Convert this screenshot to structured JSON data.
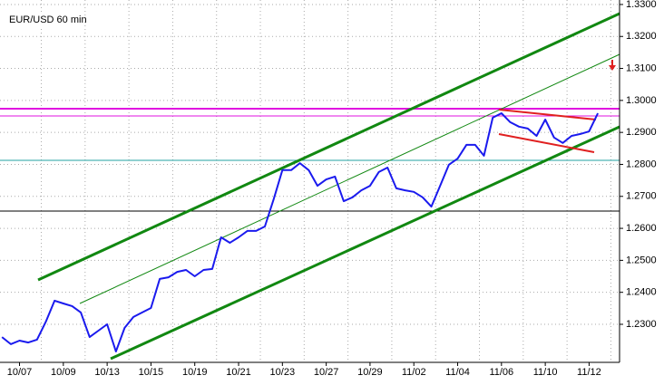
{
  "chart_data": {
    "type": "line",
    "title": "EUR/USD 60 min",
    "categories": [
      null,
      null,
      "10/07",
      null,
      null,
      null,
      null,
      "10/09",
      null,
      null,
      null,
      null,
      "10/13",
      null,
      null,
      null,
      null,
      "10/15",
      null,
      null,
      null,
      null,
      "10/19",
      null,
      null,
      null,
      null,
      "10/21",
      null,
      null,
      null,
      null,
      "10/23",
      null,
      null,
      null,
      null,
      "10/27",
      null,
      null,
      null,
      null,
      "10/29",
      null,
      null,
      null,
      null,
      "11/02",
      null,
      null,
      null,
      null,
      "11/04",
      null,
      null,
      null,
      null,
      "11/06",
      null,
      null,
      null,
      null,
      "11/10",
      null,
      null,
      null,
      null,
      "11/12",
      null
    ],
    "values": [
      1.226,
      1.2238,
      1.2249,
      1.2243,
      1.2252,
      1.2308,
      1.2374,
      1.2365,
      1.2357,
      1.2337,
      1.226,
      1.228,
      1.23,
      1.2215,
      1.2289,
      1.2323,
      1.2337,
      1.2351,
      1.2442,
      1.2447,
      1.2464,
      1.247,
      1.245,
      1.247,
      1.2473,
      1.2572,
      1.2555,
      1.2572,
      1.2592,
      1.2592,
      1.2606,
      1.2691,
      1.2782,
      1.2782,
      1.2804,
      1.2782,
      1.2733,
      1.2753,
      1.2762,
      1.2685,
      1.2697,
      1.2719,
      1.2733,
      1.2776,
      1.279,
      1.2725,
      1.2719,
      1.2714,
      1.2697,
      1.2668,
      1.2733,
      1.2799,
      1.2818,
      1.2861,
      1.2861,
      1.2827,
      1.2946,
      1.296,
      1.2932,
      1.2918,
      1.2912,
      1.2889,
      1.294,
      1.2884,
      1.2867,
      1.2889,
      1.2895,
      1.2903,
      1.296
    ],
    "color": "#1a1aee",
    "ylim": [
      1.2181,
      1.3314
    ],
    "yticks": [
      {
        "value": 1.23,
        "label": "1.2300"
      },
      {
        "value": 1.24,
        "label": "1.2400"
      },
      {
        "value": 1.25,
        "label": "1.2500"
      },
      {
        "value": 1.26,
        "label": "1.2600"
      },
      {
        "value": 1.27,
        "label": "1.2700"
      },
      {
        "value": 1.28,
        "label": "1.2800"
      },
      {
        "value": 1.29,
        "label": "1.2900"
      },
      {
        "value": 1.3,
        "label": "1.3000"
      },
      {
        "value": 1.31,
        "label": "1.3100"
      },
      {
        "value": 1.32,
        "label": "1.3200"
      },
      {
        "value": 1.33,
        "label": "1.3300"
      }
    ],
    "grid": true
  }
}
